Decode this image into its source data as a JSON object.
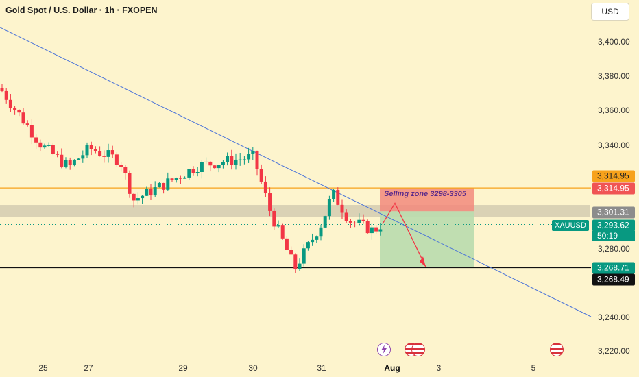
{
  "header": {
    "title": "Gold Spot / U.S. Dollar · 1h · FXOPEN",
    "currency_button": "USD"
  },
  "price_axis": {
    "ticks": [
      "3,400.00",
      "3,380.00",
      "3,360.00",
      "3,340.00",
      "3,280.00",
      "3,240.00",
      "3,220.00"
    ]
  },
  "time_axis": {
    "ticks": [
      "25",
      "27",
      "29",
      "30",
      "31",
      "Aug",
      "3",
      "5"
    ]
  },
  "price_labels": {
    "resistance_top": "3,314.95",
    "resistance_bottom": "3,314.95",
    "zone_level": "3,301.31",
    "current_symbol": "XAUUSD",
    "current_price": "3,293.62",
    "countdown": "50:19",
    "target": "3,268.71",
    "support": "3,268.49"
  },
  "annotations": {
    "selling_zone": "Selling zone 3298-3305"
  },
  "colors": {
    "background": "#fdf4cd",
    "up_candle": "#089981",
    "down_candle": "#f23645",
    "trendline": "#4a73d9",
    "resistance_line": "#f7a21b",
    "zone_band": "#bdb6a3",
    "sell_box": "#f28a7c",
    "target_box": "#b9dcae",
    "arrow": "#f23645"
  },
  "chart_data": {
    "type": "candlestick",
    "symbol": "XAUUSD",
    "interval": "1h",
    "close_path": [
      [
        "Jul 24",
        3373
      ],
      [
        "Jul 25",
        3340
      ],
      [
        "Jul 26",
        3327
      ],
      [
        "Jul 27",
        3338
      ],
      [
        "Jul 28",
        3331
      ],
      [
        "Jul 28",
        3308
      ],
      [
        "Jul 29",
        3316
      ],
      [
        "Jul 29",
        3328
      ],
      [
        "Jul 30",
        3333
      ],
      [
        "Jul 30",
        3300
      ],
      [
        "Jul 30",
        3268
      ],
      [
        "Jul 31",
        3295
      ],
      [
        "Jul 31",
        3312
      ],
      [
        "Jul 31",
        3296
      ],
      [
        "Aug 1",
        3290
      ],
      [
        "Aug 1",
        3293.62
      ]
    ],
    "levels": {
      "resistance": 3314.95,
      "zone_line": 3301.31,
      "current": 3293.62,
      "target": 3268.71,
      "support": 3268.49
    },
    "selling_zone": [
      3298,
      3305
    ],
    "projection_target": 3268.71,
    "yrange": [
      3215,
      3413
    ]
  },
  "icons": {
    "events": [
      "lightning-icon",
      "us-flag-icon",
      "us-flag-icon",
      "us-flag-icon"
    ]
  }
}
